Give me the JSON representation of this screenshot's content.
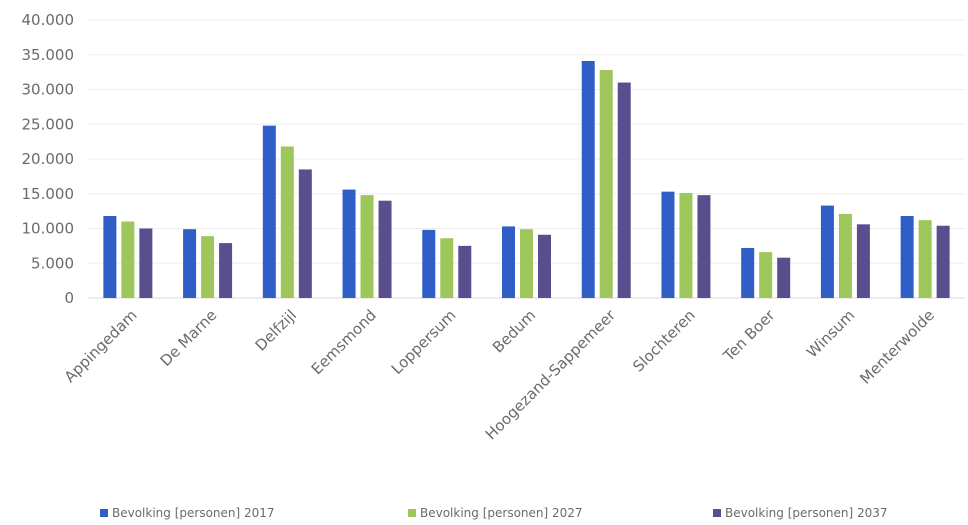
{
  "chart_data": {
    "type": "bar",
    "title": "",
    "xlabel": "",
    "ylabel": "",
    "ylim": [
      0,
      40000
    ],
    "yticks": [
      0,
      5000,
      10000,
      15000,
      20000,
      25000,
      30000,
      35000,
      40000
    ],
    "ytick_labels": [
      "0",
      "5.000",
      "10.000",
      "15.000",
      "20.000",
      "25.000",
      "30.000",
      "35.000",
      "40.000"
    ],
    "grid": true,
    "legend_position": "bottom",
    "categories": [
      "Appingedam",
      "De Marne",
      "Delfzijl",
      "Eemsmond",
      "Loppersum",
      "Bedum",
      "Hoogezand-Sappemeer",
      "Slochteren",
      "Ten Boer",
      "Winsum",
      "Menterwolde"
    ],
    "series": [
      {
        "name": "Bevolking [personen] 2017",
        "color": "#2f5fc6",
        "values": [
          11800,
          9900,
          24800,
          15600,
          9800,
          10300,
          34100,
          15300,
          7200,
          13300,
          11800
        ]
      },
      {
        "name": "Bevolking [personen] 2027",
        "color": "#9dc75a",
        "values": [
          11000,
          8900,
          21800,
          14800,
          8600,
          9900,
          32800,
          15100,
          6600,
          12100,
          11200
        ]
      },
      {
        "name": "Bevolking [personen] 2037",
        "color": "#5a4f8e",
        "values": [
          10000,
          7900,
          18500,
          14000,
          7500,
          9100,
          31000,
          14800,
          5800,
          10600,
          10400
        ]
      }
    ]
  }
}
